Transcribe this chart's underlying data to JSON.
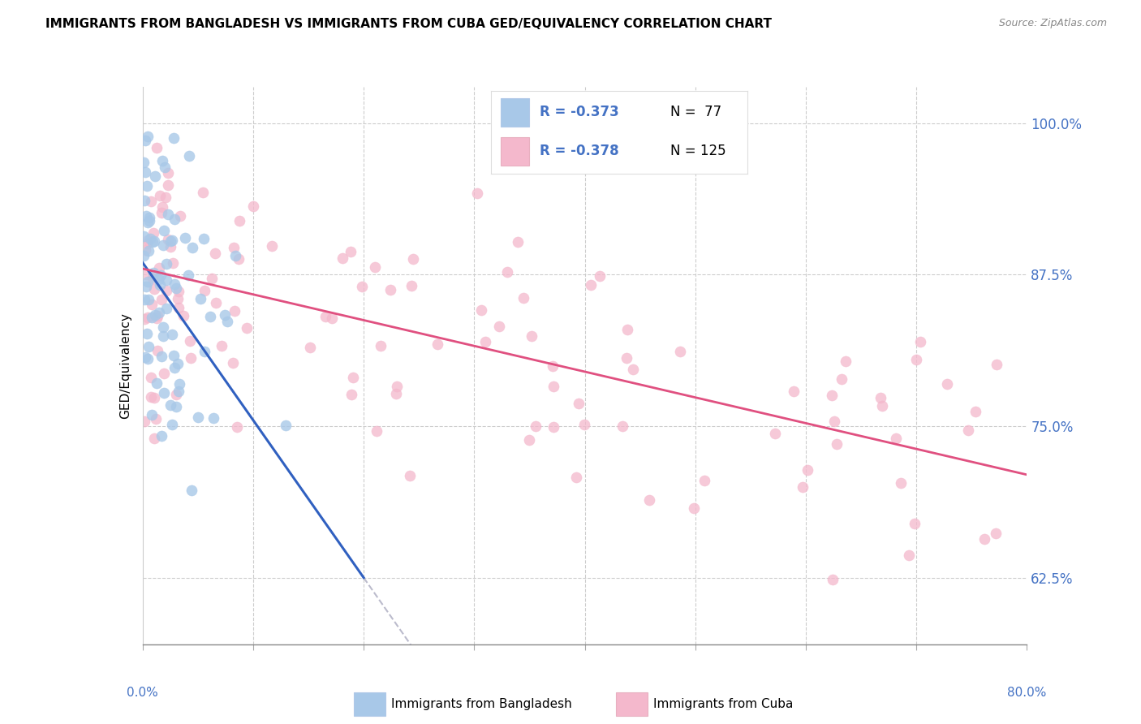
{
  "title": "IMMIGRANTS FROM BANGLADESH VS IMMIGRANTS FROM CUBA GED/EQUIVALENCY CORRELATION CHART",
  "source": "Source: ZipAtlas.com",
  "ylabel": "GED/Equivalency",
  "ylabel_right_ticks": [
    100.0,
    87.5,
    75.0,
    62.5
  ],
  "ylabel_right_labels": [
    "100.0%",
    "87.5%",
    "75.0%",
    "62.5%"
  ],
  "xmin": 0.0,
  "xmax": 80.0,
  "ymin": 57.0,
  "ymax": 103.0,
  "color_bangladesh": "#a8c8e8",
  "color_cuba": "#f4b8cc",
  "color_line_bangladesh": "#3060c0",
  "color_line_cuba": "#e05080",
  "color_right_labels": "#4472c4",
  "color_dashed_line": "#bbbbcc",
  "reg_bangladesh_x0": 0.0,
  "reg_bangladesh_y0": 88.5,
  "reg_bangladesh_x1": 20.0,
  "reg_bangladesh_y1": 62.5,
  "reg_cuba_x0": 0.0,
  "reg_cuba_y0": 88.0,
  "reg_cuba_x1": 80.0,
  "reg_cuba_y1": 71.0,
  "dash_x0": 20.0,
  "dash_x1": 80.0,
  "seed_bangladesh": 101,
  "seed_cuba": 202
}
